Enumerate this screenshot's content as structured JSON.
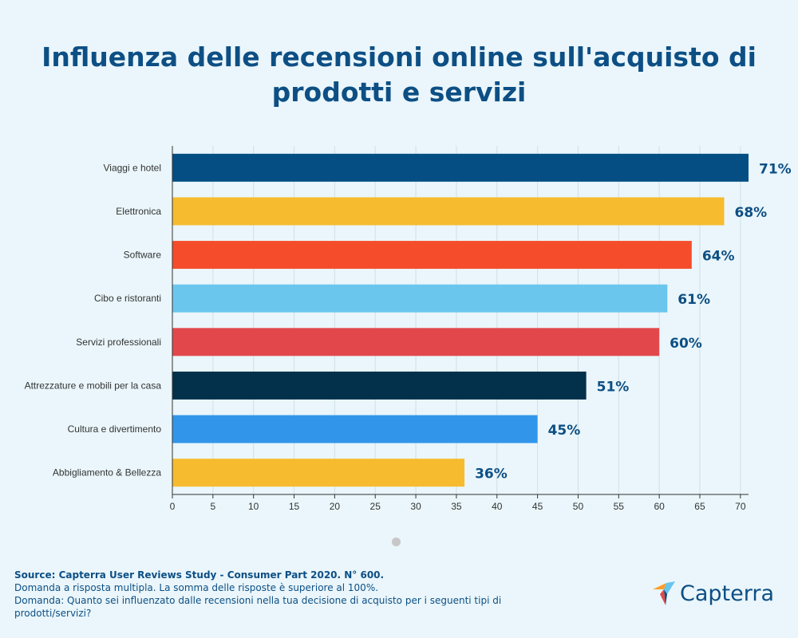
{
  "title": "Influenza delle recensioni online sull'acquisto di prodotti e servizi",
  "chart_data": {
    "type": "bar",
    "orientation": "horizontal",
    "categories": [
      "Viaggi e hotel",
      "Elettronica",
      "Software",
      "Cibo e ristoranti",
      "Servizi professionali",
      "Attrezzature e mobili per la casa",
      "Cultura e divertimento",
      "Abbigliamento & Bellezza"
    ],
    "values": [
      71,
      68,
      64,
      61,
      60,
      51,
      45,
      36
    ],
    "value_labels": [
      "71%",
      "68%",
      "64%",
      "61%",
      "60%",
      "51%",
      "45%",
      "36%"
    ],
    "colors": [
      "#044e83",
      "#f6bb2f",
      "#f54d2b",
      "#6bc6ee",
      "#e2484b",
      "#03304a",
      "#3196ea",
      "#f6bb2f"
    ],
    "xlim": [
      0,
      71
    ],
    "xticks": [
      0,
      5,
      10,
      15,
      20,
      25,
      30,
      35,
      40,
      45,
      50,
      55,
      60,
      65,
      70
    ],
    "grid": true,
    "xlabel": "",
    "ylabel": ""
  },
  "footer": {
    "source": "Source: Capterra User Reviews Study - Consumer Part 2020. N° 600.",
    "note1": "Domanda a risposta multipla. La somma delle risposte è superiore al 100%.",
    "note2": "Domanda: Quanto sei influenzato dalle recensioni nella tua decisione di acquisto per i seguenti tipi di prodotti/servizi?"
  },
  "logo": {
    "text": "Capterra"
  }
}
